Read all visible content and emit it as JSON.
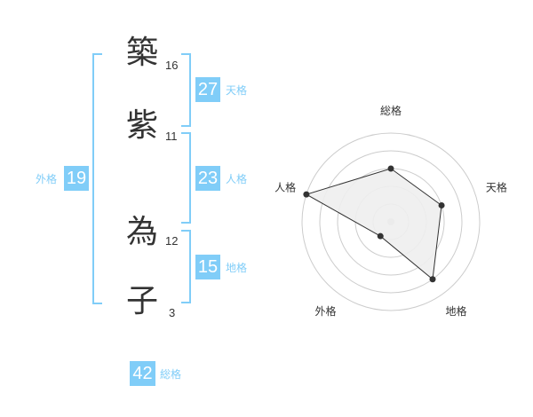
{
  "name": {
    "chars": [
      {
        "char": "築",
        "strokes": "16"
      },
      {
        "char": "紫",
        "strokes": "11"
      },
      {
        "char": "為",
        "strokes": "12"
      },
      {
        "char": "子",
        "strokes": "3"
      }
    ]
  },
  "fortunes": {
    "tenkaku": {
      "label": "天格",
      "value": "27"
    },
    "jinkaku": {
      "label": "人格",
      "value": "23"
    },
    "chikaku": {
      "label": "地格",
      "value": "15"
    },
    "gaikaku": {
      "label": "外格",
      "value": "19"
    },
    "soukaku": {
      "label": "総格",
      "value": "42"
    }
  },
  "colors": {
    "accent": "#80cdf8",
    "text": "#333333",
    "radar_fill": "#eeeeee"
  },
  "chart_data": {
    "type": "radar",
    "axes": [
      "総格",
      "天格",
      "地格",
      "外格",
      "人格"
    ],
    "values": [
      3,
      3,
      4,
      1,
      5
    ],
    "range": [
      0,
      5
    ],
    "rings": 5
  }
}
